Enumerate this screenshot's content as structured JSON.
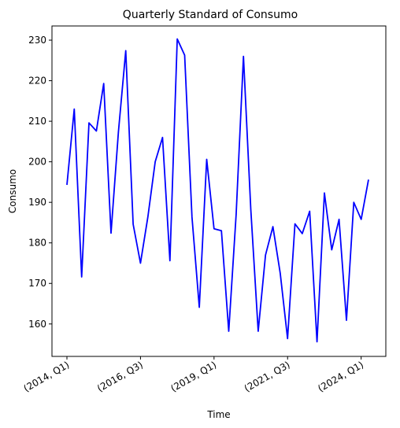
{
  "chart_data": {
    "type": "line",
    "title": "Quarterly Standard of Consumo",
    "xlabel": "Time",
    "ylabel": "Consumo",
    "x_tick_labels": [
      "(2014, Q1)",
      "(2016, Q3)",
      "(2019, Q1)",
      "(2021, Q3)",
      "(2024, Q1)"
    ],
    "y_ticks": [
      160,
      170,
      180,
      190,
      200,
      210,
      220,
      230
    ],
    "ylim": [
      152,
      233.5
    ],
    "grid": false,
    "series": [
      {
        "color": "#0000ff",
        "x": [
          "2014 Q1",
          "2014 Q2",
          "2014 Q3",
          "2014 Q4",
          "2015 Q1",
          "2015 Q2",
          "2015 Q3",
          "2015 Q4",
          "2016 Q1",
          "2016 Q2",
          "2016 Q3",
          "2016 Q4",
          "2017 Q1",
          "2017 Q2",
          "2017 Q3",
          "2017 Q4",
          "2018 Q1",
          "2018 Q2",
          "2018 Q3",
          "2018 Q4",
          "2019 Q1",
          "2019 Q2",
          "2019 Q3",
          "2019 Q4",
          "2020 Q1",
          "2020 Q2",
          "2020 Q3",
          "2020 Q4",
          "2021 Q1",
          "2021 Q2",
          "2021 Q3",
          "2021 Q4",
          "2022 Q1",
          "2022 Q2",
          "2022 Q3",
          "2022 Q4",
          "2023 Q1",
          "2023 Q2",
          "2023 Q3",
          "2023 Q4",
          "2024 Q1",
          "2024 Q2"
        ],
        "values": [
          194.3,
          213.0,
          171.6,
          209.6,
          207.6,
          219.3,
          182.4,
          207.4,
          227.4,
          184.6,
          175.0,
          186.4,
          200.0,
          206.0,
          175.6,
          230.3,
          226.3,
          186.4,
          164.1,
          200.6,
          183.5,
          183.0,
          158.2,
          187.0,
          226.0,
          188.3,
          158.2,
          177.0,
          184.0,
          172.5,
          156.4,
          184.7,
          182.3,
          187.8,
          155.6,
          192.3,
          178.3,
          185.8,
          160.9,
          190.0,
          185.8,
          195.6
        ]
      }
    ]
  }
}
